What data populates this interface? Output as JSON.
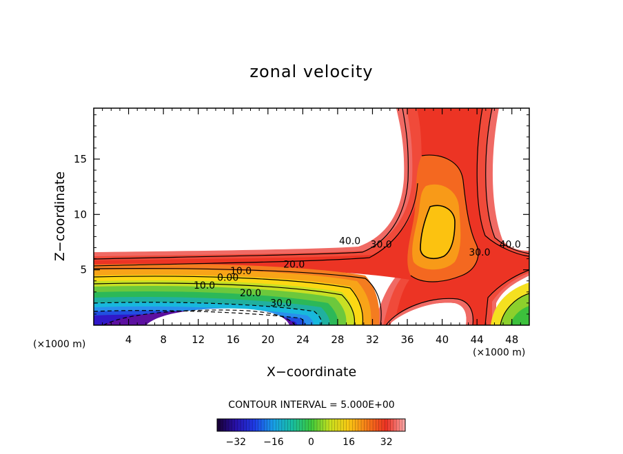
{
  "chart_data": {
    "type": "contour",
    "title": "zonal velocity",
    "xlabel": "X−coordinate",
    "ylabel": "Z−coordinate",
    "x_unit_left": "(×1000 m)",
    "x_unit_right": "(×1000 m)",
    "xlim": [
      0,
      50
    ],
    "ylim": [
      0,
      19.6
    ],
    "x_ticks": [
      {
        "value": 4,
        "label": "4"
      },
      {
        "value": 8,
        "label": "8"
      },
      {
        "value": 12,
        "label": "12"
      },
      {
        "value": 16,
        "label": "16"
      },
      {
        "value": 20,
        "label": "20"
      },
      {
        "value": 24,
        "label": "24"
      },
      {
        "value": 28,
        "label": "28"
      },
      {
        "value": 32,
        "label": "32"
      },
      {
        "value": 36,
        "label": "36"
      },
      {
        "value": 40,
        "label": "40"
      },
      {
        "value": 44,
        "label": "44"
      },
      {
        "value": 48,
        "label": "48"
      }
    ],
    "y_ticks": [
      {
        "value": 5,
        "label": "5"
      },
      {
        "value": 10,
        "label": "10"
      },
      {
        "value": 15,
        "label": "15"
      }
    ],
    "contour_interval_text": "CONTOUR INTERVAL = 5.000E+00",
    "contour_labels": [
      {
        "text": "40.0",
        "x": 29.4,
        "z": 7.3
      },
      {
        "text": "30.0",
        "x": 33.0,
        "z": 7.0
      },
      {
        "text": "20.0",
        "x": 23.0,
        "z": 5.2
      },
      {
        "text": "10.0",
        "x": 16.9,
        "z": 4.6
      },
      {
        "text": "0.00",
        "x": 15.4,
        "z": 4.0
      },
      {
        "text": "10.0",
        "x": 12.7,
        "z": 3.3
      },
      {
        "text": "20.0",
        "x": 18.0,
        "z": 2.6
      },
      {
        "text": "30.0",
        "x": 21.5,
        "z": 1.7
      },
      {
        "text": "30.0",
        "x": 44.3,
        "z": 6.3
      },
      {
        "text": "40.0",
        "x": 47.8,
        "z": 7.0
      }
    ],
    "colorbar": {
      "range": [
        -40,
        40
      ],
      "ticks": [
        {
          "value": -32,
          "label": "−32"
        },
        {
          "value": -16,
          "label": "−16"
        },
        {
          "value": 0,
          "label": "0"
        },
        {
          "value": 16,
          "label": "16"
        },
        {
          "value": 32,
          "label": "32"
        }
      ]
    }
  }
}
